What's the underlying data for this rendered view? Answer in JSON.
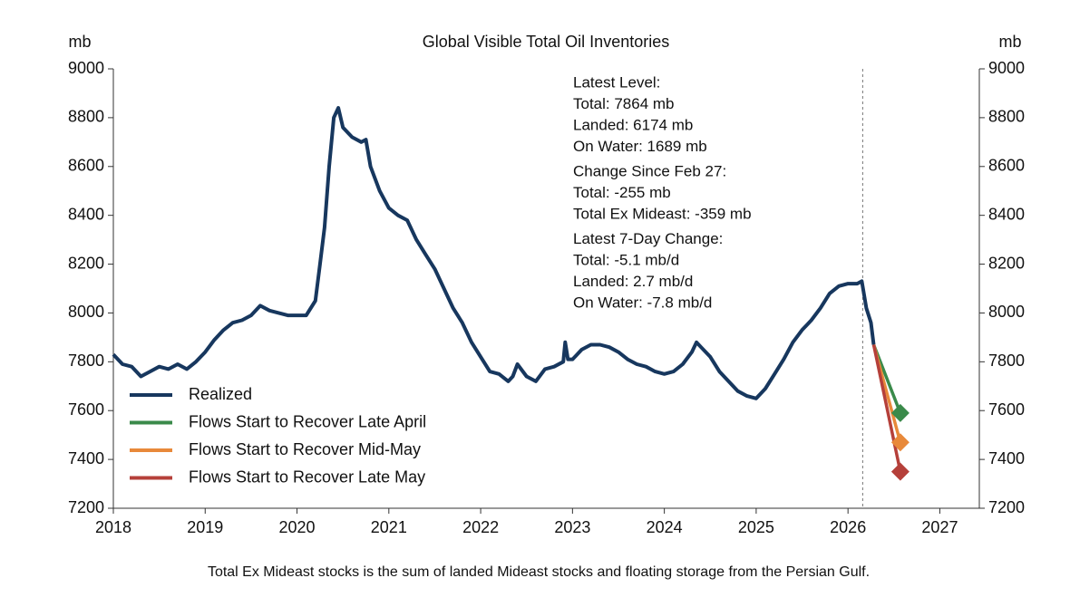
{
  "chart_data": {
    "type": "line",
    "title": "Global Visible Total Oil Inventories",
    "ylabel": "mb",
    "y2label": "mb",
    "footnote": "Total Ex Mideast stocks is the sum of landed Mideast stocks and floating storage from the Persian Gulf.",
    "xlim": [
      2018,
      2027.43
    ],
    "xticks": [
      2018,
      2019,
      2020,
      2021,
      2022,
      2023,
      2024,
      2025,
      2026,
      2027
    ],
    "ylim": [
      7200,
      9000
    ],
    "yticks": [
      7200,
      7400,
      7600,
      7800,
      8000,
      8200,
      8400,
      8600,
      8800,
      9000
    ],
    "y2lim": [
      7200,
      9000
    ],
    "y2ticks": [
      7200,
      7400,
      7600,
      7800,
      8000,
      8200,
      8400,
      8600,
      8800,
      9000
    ],
    "vline_x": 2026.16,
    "legend": "lower left",
    "series": [
      {
        "name": "Realized",
        "color": "#17375e",
        "x": [
          2018.0,
          2018.1,
          2018.2,
          2018.3,
          2018.4,
          2018.5,
          2018.6,
          2018.7,
          2018.8,
          2018.9,
          2019.0,
          2019.1,
          2019.2,
          2019.3,
          2019.4,
          2019.5,
          2019.6,
          2019.7,
          2019.8,
          2019.9,
          2020.0,
          2020.1,
          2020.2,
          2020.25,
          2020.3,
          2020.35,
          2020.4,
          2020.45,
          2020.5,
          2020.6,
          2020.7,
          2020.75,
          2020.8,
          2020.9,
          2021.0,
          2021.1,
          2021.2,
          2021.3,
          2021.4,
          2021.5,
          2021.6,
          2021.7,
          2021.8,
          2021.9,
          2022.0,
          2022.1,
          2022.2,
          2022.3,
          2022.35,
          2022.4,
          2022.5,
          2022.6,
          2022.7,
          2022.8,
          2022.9,
          2022.92,
          2022.95,
          2023.0,
          2023.1,
          2023.2,
          2023.3,
          2023.4,
          2023.5,
          2023.6,
          2023.7,
          2023.8,
          2023.9,
          2024.0,
          2024.1,
          2024.2,
          2024.3,
          2024.35,
          2024.4,
          2024.5,
          2024.6,
          2024.7,
          2024.8,
          2024.9,
          2025.0,
          2025.1,
          2025.2,
          2025.3,
          2025.4,
          2025.5,
          2025.6,
          2025.7,
          2025.8,
          2025.9,
          2026.0,
          2026.1,
          2026.15,
          2026.2,
          2026.25,
          2026.28
        ],
        "values": [
          7830,
          7790,
          7780,
          7740,
          7760,
          7780,
          7770,
          7790,
          7770,
          7800,
          7840,
          7890,
          7930,
          7960,
          7970,
          7990,
          8030,
          8010,
          8000,
          7990,
          7990,
          7990,
          8050,
          8200,
          8350,
          8600,
          8800,
          8840,
          8760,
          8720,
          8700,
          8710,
          8600,
          8500,
          8430,
          8400,
          8380,
          8300,
          8240,
          8180,
          8100,
          8020,
          7960,
          7880,
          7820,
          7760,
          7750,
          7720,
          7740,
          7790,
          7740,
          7720,
          7770,
          7780,
          7800,
          7880,
          7810,
          7810,
          7850,
          7870,
          7870,
          7860,
          7840,
          7810,
          7790,
          7780,
          7760,
          7750,
          7760,
          7790,
          7840,
          7880,
          7860,
          7820,
          7760,
          7720,
          7680,
          7660,
          7650,
          7690,
          7750,
          7810,
          7880,
          7930,
          7970,
          8020,
          8080,
          8110,
          8120,
          8120,
          8130,
          8020,
          7960,
          7870
        ]
      },
      {
        "name": "Flows Start to Recover Late April",
        "color": "#3a8a4a",
        "marker": "diamond",
        "x": [
          2026.28,
          2026.57
        ],
        "values": [
          7870,
          7590
        ]
      },
      {
        "name": "Flows Start to Recover Mid-May",
        "color": "#e8893a",
        "marker": "diamond",
        "x": [
          2026.28,
          2026.57
        ],
        "values": [
          7870,
          7470
        ]
      },
      {
        "name": "Flows Start to Recover Late May",
        "color": "#b5403a",
        "marker": "diamond",
        "x": [
          2026.28,
          2026.57
        ],
        "values": [
          7870,
          7350
        ]
      }
    ],
    "annotations": [
      [
        "Latest Level:",
        "Total: 7864 mb",
        "Landed: 6174 mb",
        "On Water: 1689 mb"
      ],
      [
        "Change Since Feb 27:",
        "Total: -255 mb",
        "Total Ex Mideast: -359 mb"
      ],
      [
        "Latest 7-Day Change:",
        "Total: -5.1 mb/d",
        "Landed: 2.7 mb/d",
        "On Water: -7.8 mb/d"
      ]
    ]
  }
}
